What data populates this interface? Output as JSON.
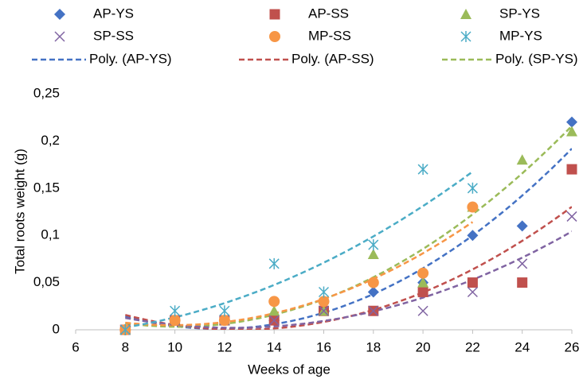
{
  "chart_data": {
    "type": "scatter",
    "x_label": "Weeks of age",
    "y_label": "Total roots weight (g)",
    "x": [
      8,
      10,
      12,
      14,
      16,
      18,
      20,
      22,
      24,
      26
    ],
    "series": [
      {
        "name": "AP-YS",
        "color": "#4472c4",
        "marker": "diamond",
        "values": [
          0,
          0.01,
          0.01,
          0.01,
          0.03,
          0.04,
          0.05,
          0.1,
          0.11,
          0.22
        ]
      },
      {
        "name": "AP-SS",
        "color": "#c0504d",
        "marker": "square",
        "values": [
          0,
          0.01,
          0.01,
          0.01,
          0.02,
          0.02,
          0.04,
          0.05,
          0.05,
          0.17
        ]
      },
      {
        "name": "SP-YS",
        "color": "#9bbb59",
        "marker": "triangle",
        "values": [
          0,
          0.01,
          0.01,
          0.02,
          0.02,
          0.08,
          0.05,
          0.13,
          0.18,
          0.21
        ]
      },
      {
        "name": "SP-SS",
        "color": "#8064a2",
        "marker": "cross",
        "values": [
          0,
          0.01,
          0.01,
          0.01,
          0.02,
          0.02,
          0.02,
          0.04,
          0.07,
          0.12
        ]
      },
      {
        "name": "MP-SS",
        "color": "#f79646",
        "marker": "circle",
        "values": [
          0,
          0.01,
          0.01,
          0.03,
          0.03,
          0.05,
          0.06,
          0.13,
          null,
          null
        ]
      },
      {
        "name": "MP-YS",
        "color": "#4bacc6",
        "marker": "asterisk",
        "values": [
          0,
          0.02,
          0.02,
          0.07,
          0.04,
          0.09,
          0.17,
          0.15,
          null,
          null
        ]
      }
    ],
    "trendlines": [
      {
        "name": "Poly. (AP-YS)",
        "series": 0,
        "order": 2
      },
      {
        "name": "Poly. (AP-SS)",
        "series": 1,
        "order": 2
      },
      {
        "name": "Poly. (SP-YS)",
        "series": 2,
        "order": 2
      },
      {
        "series": 3,
        "order": 2
      },
      {
        "series": 4,
        "order": 2
      },
      {
        "series": 5,
        "order": 2
      }
    ],
    "xlim": [
      6,
      26
    ],
    "xticks": [
      6,
      8,
      10,
      12,
      14,
      16,
      18,
      20,
      22,
      24,
      26
    ],
    "ylim": [
      0,
      0.25
    ],
    "yticks": [
      0,
      {
        "value": 0.05,
        "label": "0,05"
      },
      {
        "value": 0.1,
        "label": "0,1"
      },
      {
        "value": 0.15,
        "label": "0,15"
      },
      {
        "value": 0.2,
        "label": "0,2"
      },
      {
        "value": 0.25,
        "label": "0,25"
      }
    ]
  }
}
